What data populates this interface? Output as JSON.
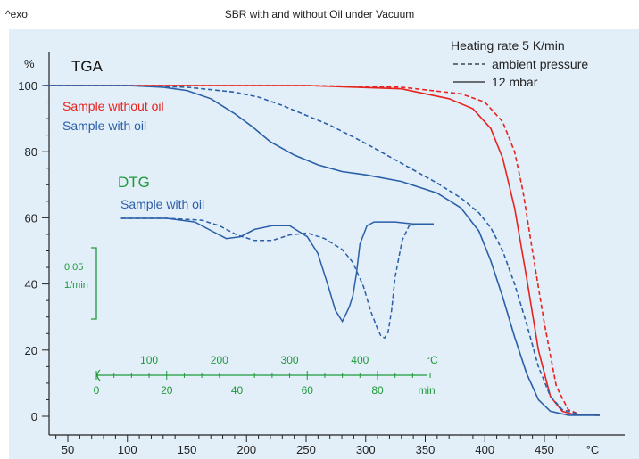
{
  "header": {
    "exo_label": "^exo",
    "title": "SBR with and without Oil under Vacuum"
  },
  "colors": {
    "background": "#e2eef8",
    "red": "#e8231e",
    "blue": "#2a5fa8",
    "green": "#1e9a3a",
    "axis": "#222222"
  },
  "chart_data": [
    {
      "type": "line",
      "panel_label": "TGA",
      "xlabel_unit": "°C",
      "ylabel_unit": "%",
      "xlim": [
        30,
        700
      ],
      "ylim": [
        -5,
        105
      ],
      "x_ticks": [
        50,
        100,
        150,
        200,
        250,
        300,
        350,
        400,
        450
      ],
      "y_ticks": [
        0,
        20,
        40,
        60,
        80,
        100
      ],
      "legend_title": "Heating rate 5 K/min",
      "legend": [
        {
          "label": "ambient pressure",
          "style": "dashed"
        },
        {
          "label": "12 mbar",
          "style": "solid"
        }
      ],
      "annotations": [
        {
          "text": "Sample without oil",
          "color": "#e8231e"
        },
        {
          "text": "Sample with oil",
          "color": "#2a5fa8"
        }
      ],
      "series": [
        {
          "sample": "without oil",
          "condition": "ambient pressure",
          "color": "#e8231e",
          "style": "dashed",
          "x": [
            30,
            150,
            250,
            330,
            380,
            400,
            415,
            425,
            432,
            440,
            450,
            460,
            470,
            480,
            500,
            600,
            700
          ],
          "y": [
            100,
            100,
            100,
            99.5,
            97.5,
            95,
            89,
            80,
            68,
            50,
            28,
            9,
            2,
            0.5,
            0.3,
            0.3,
            0.3
          ]
        },
        {
          "sample": "without oil",
          "condition": "12 mbar",
          "color": "#e8231e",
          "style": "solid",
          "x": [
            30,
            150,
            250,
            330,
            370,
            390,
            405,
            415,
            425,
            435,
            445,
            455,
            465,
            475,
            500,
            600,
            700
          ],
          "y": [
            100,
            100,
            100,
            99,
            96,
            93,
            87,
            78,
            63,
            42,
            20,
            6,
            1.5,
            0.5,
            0.3,
            0.3,
            0.3
          ]
        },
        {
          "sample": "with oil",
          "condition": "ambient pressure",
          "color": "#2a5fa8",
          "style": "dashed",
          "x": [
            30,
            100,
            150,
            190,
            210,
            230,
            250,
            270,
            300,
            330,
            360,
            380,
            395,
            405,
            415,
            425,
            435,
            445,
            455,
            465,
            480,
            500,
            600,
            700
          ],
          "y": [
            100,
            100,
            99.5,
            98,
            96.5,
            94,
            91,
            88,
            82.5,
            76.5,
            70.5,
            66,
            61.5,
            57,
            50,
            40,
            28,
            15,
            6,
            2,
            0.5,
            0.3,
            0.3,
            0.3
          ]
        },
        {
          "sample": "with oil",
          "condition": "12 mbar",
          "color": "#2a5fa8",
          "style": "solid",
          "x": [
            30,
            100,
            130,
            150,
            170,
            190,
            205,
            220,
            240,
            260,
            280,
            300,
            330,
            360,
            380,
            395,
            405,
            415,
            425,
            435,
            445,
            455,
            470,
            500,
            600,
            700
          ],
          "y": [
            100,
            100,
            99.5,
            98.5,
            96,
            91.5,
            87.5,
            83,
            79,
            76,
            74,
            73,
            71,
            67.5,
            63,
            56,
            47,
            36,
            24,
            13,
            5,
            1.5,
            0.3,
            0.3,
            0.3,
            0.3
          ]
        }
      ]
    },
    {
      "type": "line",
      "panel_label": "DTG",
      "panel_color": "#1e9a3a",
      "annotation": "Sample with oil",
      "scale_bar_label_1": "0.05",
      "scale_bar_label_2": "1/min",
      "temp_ticks": [
        100,
        200,
        300,
        400
      ],
      "temp_unit": "°C",
      "time_ticks": [
        0,
        20,
        40,
        60,
        80
      ],
      "time_unit": "min",
      "xlim": [
        0,
        95
      ],
      "x_label_note": "x in minutes; values read as scaled curve height",
      "series": [
        {
          "condition": "ambient pressure",
          "color": "#2a5fa8",
          "style": "dashed",
          "x": [
            7,
            20,
            30,
            35,
            40,
            45,
            50,
            55,
            60,
            65,
            70,
            73,
            76,
            78,
            80,
            81,
            82,
            83,
            84,
            85,
            87,
            89,
            92,
            96
          ],
          "y": [
            0.062,
            0.062,
            0.061,
            0.058,
            0.053,
            0.05,
            0.05,
            0.053,
            0.054,
            0.051,
            0.045,
            0.038,
            0.025,
            0.012,
            0.002,
            -0.002,
            -0.003,
            0.0,
            0.012,
            0.03,
            0.05,
            0.058,
            0.059,
            0.059
          ]
        },
        {
          "condition": "12 mbar",
          "color": "#2a5fa8",
          "style": "solid",
          "x": [
            7,
            20,
            28,
            33,
            37,
            41,
            45,
            50,
            55,
            60,
            63,
            66,
            68,
            70,
            71,
            72,
            73,
            74,
            75,
            77,
            79,
            82,
            85,
            90,
            96
          ],
          "y": [
            0.062,
            0.062,
            0.06,
            0.055,
            0.051,
            0.052,
            0.056,
            0.058,
            0.058,
            0.052,
            0.043,
            0.025,
            0.012,
            0.006,
            0.01,
            0.014,
            0.02,
            0.032,
            0.048,
            0.058,
            0.06,
            0.06,
            0.06,
            0.059,
            0.059
          ]
        }
      ]
    }
  ]
}
